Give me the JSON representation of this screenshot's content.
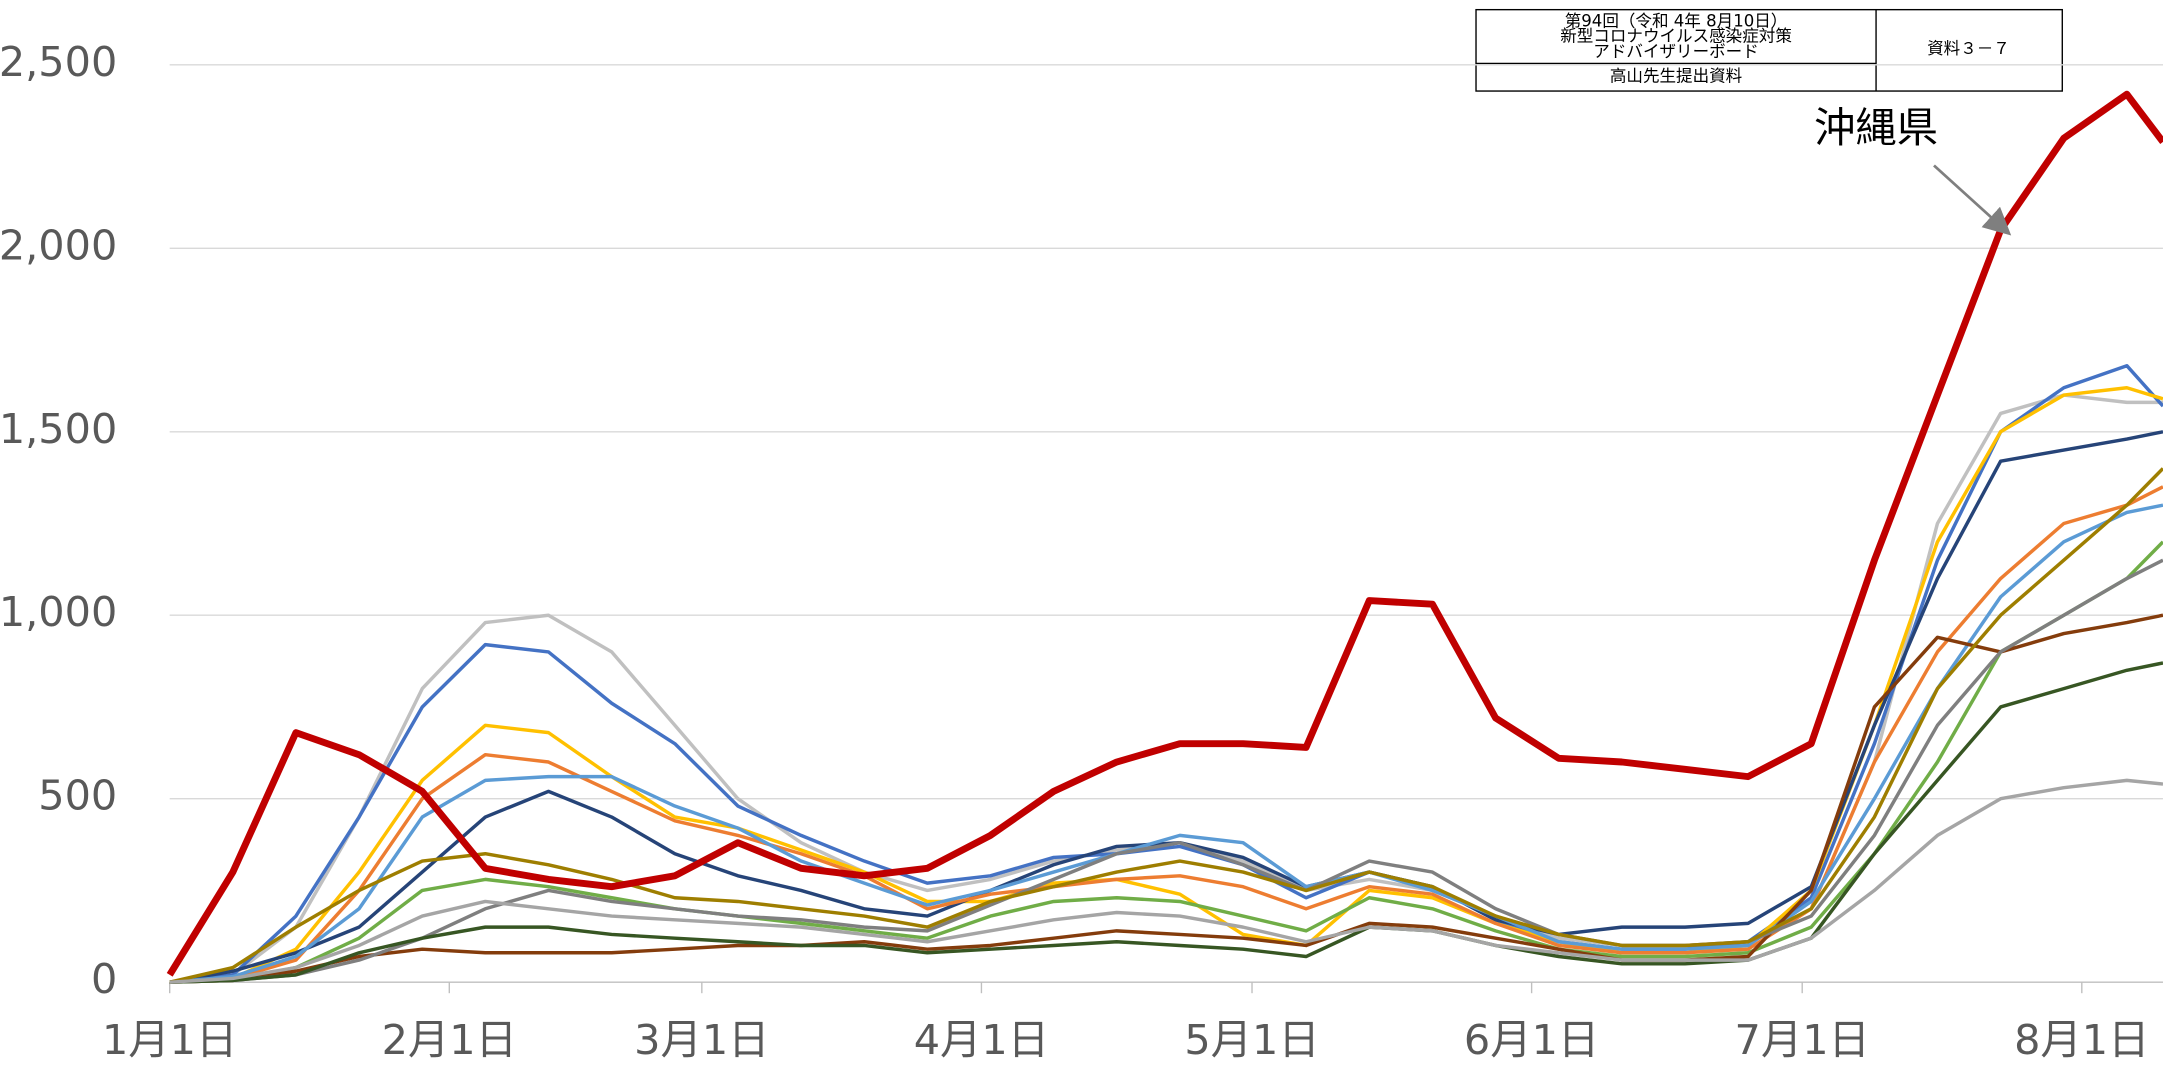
{
  "header_box": {
    "lines": [
      "第94回（令和 4年 8月10日）",
      "新型コロナウイルス感染症対策",
      "アドバイザリーボード"
    ],
    "footer": "高山先生提出資料",
    "doc_id": "資料３－７"
  },
  "chart_data": {
    "type": "line",
    "annotation": "沖縄県",
    "xlim": [
      0,
      221
    ],
    "xticks": [
      {
        "value": 0,
        "label": "1月1日"
      },
      {
        "value": 31,
        "label": "2月1日"
      },
      {
        "value": 59,
        "label": "3月1日"
      },
      {
        "value": 90,
        "label": "4月1日"
      },
      {
        "value": 120,
        "label": "5月1日"
      },
      {
        "value": 151,
        "label": "6月1日"
      },
      {
        "value": 181,
        "label": "7月1日"
      },
      {
        "value": 212,
        "label": "8月1日"
      }
    ],
    "ylim": [
      0,
      2500
    ],
    "yticks": [
      0,
      500,
      {
        "value": 1000,
        "label": "1,000"
      },
      {
        "value": 1500,
        "label": "1,500"
      },
      {
        "value": 2000,
        "label": "2,000"
      },
      {
        "value": 2500,
        "label": "2,500"
      }
    ],
    "grid": true,
    "x": [
      0,
      7,
      14,
      21,
      28,
      35,
      42,
      49,
      56,
      63,
      70,
      77,
      84,
      91,
      98,
      105,
      112,
      119,
      126,
      133,
      140,
      147,
      154,
      161,
      168,
      175,
      182,
      189,
      196,
      203,
      210,
      217,
      221
    ],
    "series": [
      {
        "color": "#c0c0c0",
        "values": [
          0,
          20,
          150,
          450,
          800,
          980,
          1000,
          900,
          700,
          500,
          380,
          300,
          250,
          280,
          330,
          360,
          380,
          330,
          250,
          280,
          250,
          180,
          120,
          100,
          100,
          110,
          200,
          600,
          1250,
          1550,
          1600,
          1580,
          1580
        ]
      },
      {
        "color": "#4472c4",
        "values": [
          0,
          20,
          180,
          450,
          750,
          920,
          900,
          760,
          650,
          480,
          400,
          330,
          270,
          290,
          340,
          350,
          370,
          320,
          230,
          300,
          260,
          170,
          110,
          90,
          90,
          110,
          230,
          650,
          1150,
          1500,
          1620,
          1680,
          1570
        ]
      },
      {
        "color": "#ffc000",
        "values": [
          0,
          10,
          90,
          300,
          550,
          700,
          680,
          560,
          450,
          420,
          360,
          300,
          220,
          220,
          270,
          280,
          240,
          130,
          100,
          250,
          230,
          160,
          110,
          80,
          80,
          100,
          250,
          700,
          1200,
          1500,
          1600,
          1620,
          1590
        ]
      },
      {
        "color": "#264478",
        "values": [
          0,
          30,
          80,
          150,
          300,
          450,
          520,
          450,
          350,
          290,
          250,
          200,
          180,
          250,
          320,
          370,
          380,
          340,
          260,
          300,
          260,
          170,
          130,
          150,
          150,
          160,
          260,
          700,
          1100,
          1420,
          1450,
          1480,
          1500
        ]
      },
      {
        "color": "#ed7d31",
        "values": [
          0,
          10,
          60,
          250,
          500,
          620,
          600,
          520,
          440,
          400,
          350,
          290,
          200,
          240,
          260,
          280,
          290,
          260,
          200,
          260,
          240,
          160,
          100,
          80,
          80,
          90,
          200,
          600,
          900,
          1100,
          1250,
          1300,
          1350
        ]
      },
      {
        "color": "#5b9bd5",
        "values": [
          0,
          15,
          70,
          200,
          450,
          550,
          560,
          560,
          480,
          420,
          330,
          270,
          210,
          250,
          300,
          350,
          400,
          380,
          260,
          300,
          250,
          180,
          110,
          90,
          90,
          100,
          220,
          500,
          800,
          1050,
          1200,
          1280,
          1300
        ]
      },
      {
        "color": "#70ad47",
        "values": [
          0,
          5,
          40,
          120,
          250,
          280,
          260,
          230,
          200,
          180,
          160,
          140,
          120,
          180,
          220,
          230,
          220,
          180,
          140,
          230,
          200,
          140,
          90,
          70,
          70,
          80,
          150,
          350,
          600,
          900,
          1000,
          1100,
          1200
        ]
      },
      {
        "color": "#843c0c",
        "values": [
          0,
          5,
          30,
          70,
          90,
          80,
          80,
          80,
          90,
          100,
          100,
          110,
          90,
          100,
          120,
          140,
          130,
          120,
          100,
          160,
          150,
          120,
          90,
          60,
          60,
          70,
          250,
          750,
          940,
          900,
          950,
          980,
          1000
        ]
      },
      {
        "color": "#7f7f7f",
        "values": [
          0,
          5,
          20,
          60,
          120,
          200,
          250,
          220,
          200,
          180,
          170,
          150,
          140,
          210,
          280,
          350,
          380,
          320,
          250,
          330,
          300,
          200,
          130,
          100,
          100,
          110,
          180,
          400,
          700,
          900,
          1000,
          1100,
          1150
        ]
      },
      {
        "color": "#375623",
        "values": [
          0,
          5,
          20,
          80,
          120,
          150,
          150,
          130,
          120,
          110,
          100,
          100,
          80,
          90,
          100,
          110,
          100,
          90,
          70,
          150,
          140,
          100,
          70,
          50,
          50,
          60,
          120,
          350,
          550,
          750,
          800,
          850,
          870
        ]
      },
      {
        "color": "#9e7e00",
        "values": [
          0,
          40,
          150,
          250,
          330,
          350,
          320,
          280,
          230,
          220,
          200,
          180,
          150,
          220,
          260,
          300,
          330,
          300,
          250,
          300,
          260,
          180,
          130,
          100,
          100,
          110,
          200,
          450,
          800,
          1000,
          1150,
          1300,
          1400
        ]
      },
      {
        "color": "#a5a5a5",
        "values": [
          0,
          10,
          40,
          100,
          180,
          220,
          200,
          180,
          170,
          160,
          150,
          130,
          110,
          140,
          170,
          190,
          180,
          150,
          110,
          150,
          140,
          100,
          80,
          60,
          60,
          60,
          120,
          250,
          400,
          500,
          530,
          550,
          540
        ]
      },
      {
        "name": "沖縄県",
        "color": "#c00000",
        "width": 5,
        "values": [
          20,
          300,
          680,
          620,
          520,
          310,
          280,
          260,
          290,
          380,
          310,
          290,
          310,
          400,
          520,
          600,
          650,
          650,
          640,
          1040,
          1030,
          720,
          610,
          600,
          580,
          560,
          650,
          1150,
          1600,
          2050,
          2300,
          2420,
          2290
        ]
      }
    ]
  }
}
